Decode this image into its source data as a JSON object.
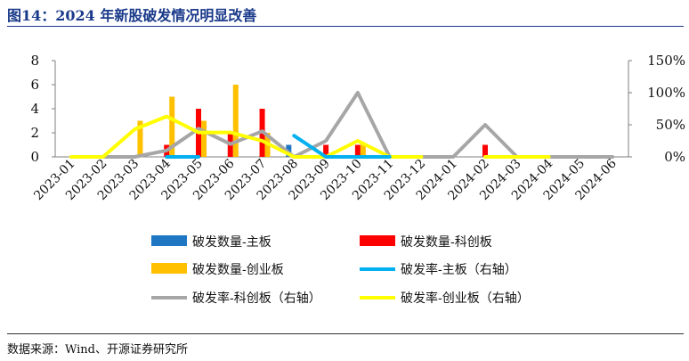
{
  "figure": {
    "title": "图14：2024 年新股破发情况明显改善",
    "source": "数据来源：Wind、开源证券研究所"
  },
  "colors": {
    "title": "#1a3a8a",
    "main_board_count": "#1f77c4",
    "star_count": "#ff0000",
    "chinext_count": "#ffc000",
    "main_rate": "#00b0f0",
    "star_rate": "#a6a6a6",
    "chinext_rate": "#ffff00"
  },
  "chart_data": {
    "type": "bar",
    "categories": [
      "2023-01",
      "2023-02",
      "2023-03",
      "2023-04",
      "2023-05",
      "2023-06",
      "2023-07",
      "2023-08",
      "2023-09",
      "2023-10",
      "2023-11",
      "2023-12",
      "2024-01",
      "2024-02",
      "2024-03",
      "2024-04",
      "2024-05",
      "2024-06"
    ],
    "y_left": {
      "lim": [
        0,
        8
      ],
      "ticks": [
        "0",
        "2",
        "4",
        "6",
        "8"
      ]
    },
    "y_right": {
      "lim": [
        0,
        150
      ],
      "ticks": [
        "0%",
        "50%",
        "100%",
        "150%"
      ]
    },
    "series": [
      {
        "name": "破发数量-主板",
        "kind": "bar",
        "axis": "left",
        "color": "#1f77c4",
        "values": [
          0,
          0,
          0,
          0,
          0,
          0,
          0,
          1,
          0,
          0,
          0,
          0,
          0,
          0,
          0,
          0,
          0,
          0
        ]
      },
      {
        "name": "破发数量-科创板",
        "kind": "bar",
        "axis": "left",
        "color": "#ff0000",
        "values": [
          0,
          0,
          0,
          1,
          4,
          2,
          4,
          0,
          1,
          1,
          0,
          0,
          0,
          1,
          0,
          0,
          0,
          0
        ]
      },
      {
        "name": "破发数量-创业板",
        "kind": "bar",
        "axis": "left",
        "color": "#ffc000",
        "values": [
          0,
          0,
          3,
          5,
          3,
          6,
          2,
          0,
          0,
          1,
          0,
          0,
          0,
          0,
          0,
          0,
          0,
          0
        ]
      },
      {
        "name": "破发率-主板（右轴）",
        "kind": "line",
        "axis": "right",
        "color": "#00b0f0",
        "values": [
          null,
          null,
          null,
          0,
          0,
          null,
          null,
          33,
          0,
          0,
          0,
          null,
          null,
          null,
          null,
          null,
          null,
          null
        ]
      },
      {
        "name": "破发率-科创板（右轴）",
        "kind": "line",
        "axis": "right",
        "color": "#a6a6a6",
        "values": [
          0,
          0,
          0,
          10,
          44,
          20,
          40,
          0,
          25,
          100,
          0,
          0,
          0,
          50,
          0,
          0,
          0,
          0
        ]
      },
      {
        "name": "破发率-创业板（右轴）",
        "kind": "line",
        "axis": "right",
        "color": "#ffff00",
        "values": [
          0,
          0,
          43,
          63,
          38,
          38,
          25,
          0,
          0,
          25,
          0,
          0,
          null,
          0,
          0,
          0,
          null,
          null
        ]
      }
    ],
    "legend": {
      "placement": "bottom",
      "items": [
        {
          "label": "破发数量-主板",
          "type": "box",
          "color": "#1f77c4"
        },
        {
          "label": "破发数量-科创板",
          "type": "box",
          "color": "#ff0000"
        },
        {
          "label": "破发数量-创业板",
          "type": "box",
          "color": "#ffc000"
        },
        {
          "label": "破发率-主板（右轴）",
          "type": "line",
          "color": "#00b0f0"
        },
        {
          "label": "破发率-科创板（右轴）",
          "type": "line",
          "color": "#a6a6a6"
        },
        {
          "label": "破发率-创业板（右轴）",
          "type": "line",
          "color": "#ffff00"
        }
      ]
    },
    "grid": false
  }
}
